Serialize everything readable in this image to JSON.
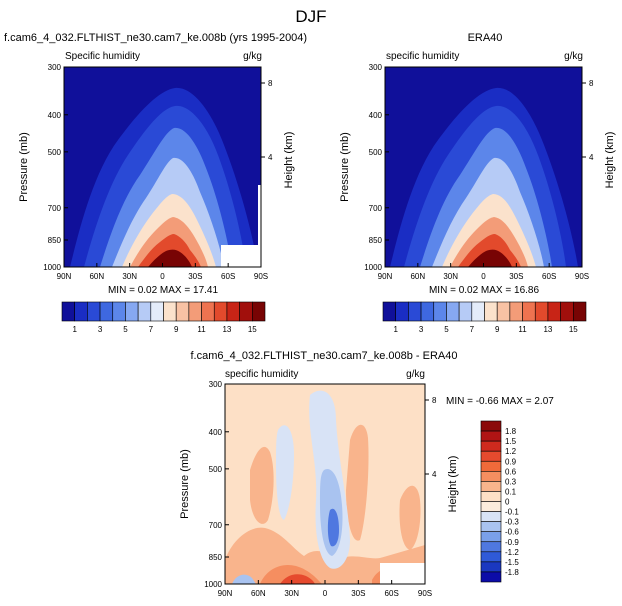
{
  "page_title": "DJF",
  "colors": {
    "deep_blue": "#0c0ca8",
    "mid_blue": "#2f5ad8",
    "light_blue": "#a9c3f0",
    "cream": "#fce5cf",
    "orange": "#f06a3a",
    "dark_red": "#8b0a0a"
  },
  "chart_data": [
    {
      "id": "model",
      "type": "heatmap",
      "title": "f.cam6_4_032.FLTHIST_ne30.cam7_ke.008b (yrs 1995-2004)",
      "left_label": "Specific humidity",
      "units": "g/kg",
      "ylabel": "Pressure (mb)",
      "y2label": "Height (km)",
      "xticks": [
        "90N",
        "60N",
        "30N",
        "0",
        "30S",
        "60S",
        "90S"
      ],
      "yticks": [
        "300",
        "400",
        "500",
        "700",
        "850",
        "1000"
      ],
      "y2ticks": [
        "8",
        "4"
      ],
      "xlim": [
        90,
        -90
      ],
      "ylim": [
        1000,
        300
      ],
      "stats": "MIN =  0.02  MAX =  17.41",
      "colorbar": {
        "orientation": "horizontal",
        "labels": [
          "1",
          "3",
          "5",
          "7",
          "9",
          "11",
          "13",
          "15"
        ],
        "levels": [
          1,
          2,
          3,
          4,
          5,
          6,
          7,
          8,
          9,
          10,
          11,
          12,
          13,
          14,
          15
        ],
        "colors": [
          "#10109a",
          "#1a2dc4",
          "#2a4ad6",
          "#3e68e0",
          "#5c86ea",
          "#86a8f2",
          "#b6cbf6",
          "#e4ecfa",
          "#fbe2cc",
          "#f8c2a4",
          "#f39c78",
          "#ee7350",
          "#e24a2c",
          "#c82416",
          "#a10f0c",
          "#780404"
        ]
      }
    },
    {
      "id": "obs",
      "type": "heatmap",
      "title": "ERA40",
      "left_label": "specific humidity",
      "units": "g/kg",
      "ylabel": "Pressure (mb)",
      "y2label": "Height (km)",
      "xticks": [
        "90N",
        "60N",
        "30N",
        "0",
        "30S",
        "60S",
        "90S"
      ],
      "yticks": [
        "300",
        "400",
        "500",
        "700",
        "850",
        "1000"
      ],
      "y2ticks": [
        "8",
        "4"
      ],
      "xlim": [
        90,
        -90
      ],
      "ylim": [
        1000,
        300
      ],
      "stats": "MIN =  0.02  MAX =  16.86",
      "colorbar": {
        "orientation": "horizontal",
        "labels": [
          "1",
          "3",
          "5",
          "7",
          "9",
          "11",
          "13",
          "15"
        ],
        "levels": [
          1,
          2,
          3,
          4,
          5,
          6,
          7,
          8,
          9,
          10,
          11,
          12,
          13,
          14,
          15
        ],
        "colors": [
          "#10109a",
          "#1a2dc4",
          "#2a4ad6",
          "#3e68e0",
          "#5c86ea",
          "#86a8f2",
          "#b6cbf6",
          "#e4ecfa",
          "#fbe2cc",
          "#f8c2a4",
          "#f39c78",
          "#ee7350",
          "#e24a2c",
          "#c82416",
          "#a10f0c",
          "#780404"
        ]
      }
    },
    {
      "id": "diff",
      "type": "heatmap",
      "title": "f.cam6_4_032.FLTHIST_ne30.cam7_ke.008b - ERA40",
      "left_label": "specific humidity",
      "units": "g/kg",
      "ylabel": "Pressure (mb)",
      "y2label": "Height (km)",
      "xticks": [
        "90N",
        "60N",
        "30N",
        "0",
        "30S",
        "60S",
        "90S"
      ],
      "yticks": [
        "300",
        "400",
        "500",
        "700",
        "850",
        "1000"
      ],
      "y2ticks": [
        "8",
        "4"
      ],
      "xlim": [
        90,
        -90
      ],
      "ylim": [
        1000,
        300
      ],
      "stats": "MIN = -0.66  MAX =  2.07",
      "colorbar": {
        "orientation": "vertical",
        "labels": [
          "1.8",
          "1.5",
          "1.2",
          "0.9",
          "0.6",
          "0.3",
          "0.1",
          "0",
          "-0.1",
          "-0.3",
          "-0.6",
          "-0.9",
          "-1.2",
          "-1.5",
          "-1.8"
        ],
        "levels": [
          1.8,
          1.5,
          1.2,
          0.9,
          0.6,
          0.3,
          0.1,
          0,
          -0.1,
          -0.3,
          -0.6,
          -0.9,
          -1.2,
          -1.5,
          -1.8
        ],
        "colors": [
          "#8b0a0a",
          "#b01414",
          "#cf2a1e",
          "#e64a2e",
          "#f06a3a",
          "#f58e60",
          "#f9b48c",
          "#fde0c6",
          "#fcecdc",
          "#d8e3f6",
          "#a9c3f0",
          "#7aa0ea",
          "#4f78e0",
          "#2f5ad8",
          "#1a38c0",
          "#0c0ca8"
        ]
      }
    }
  ]
}
